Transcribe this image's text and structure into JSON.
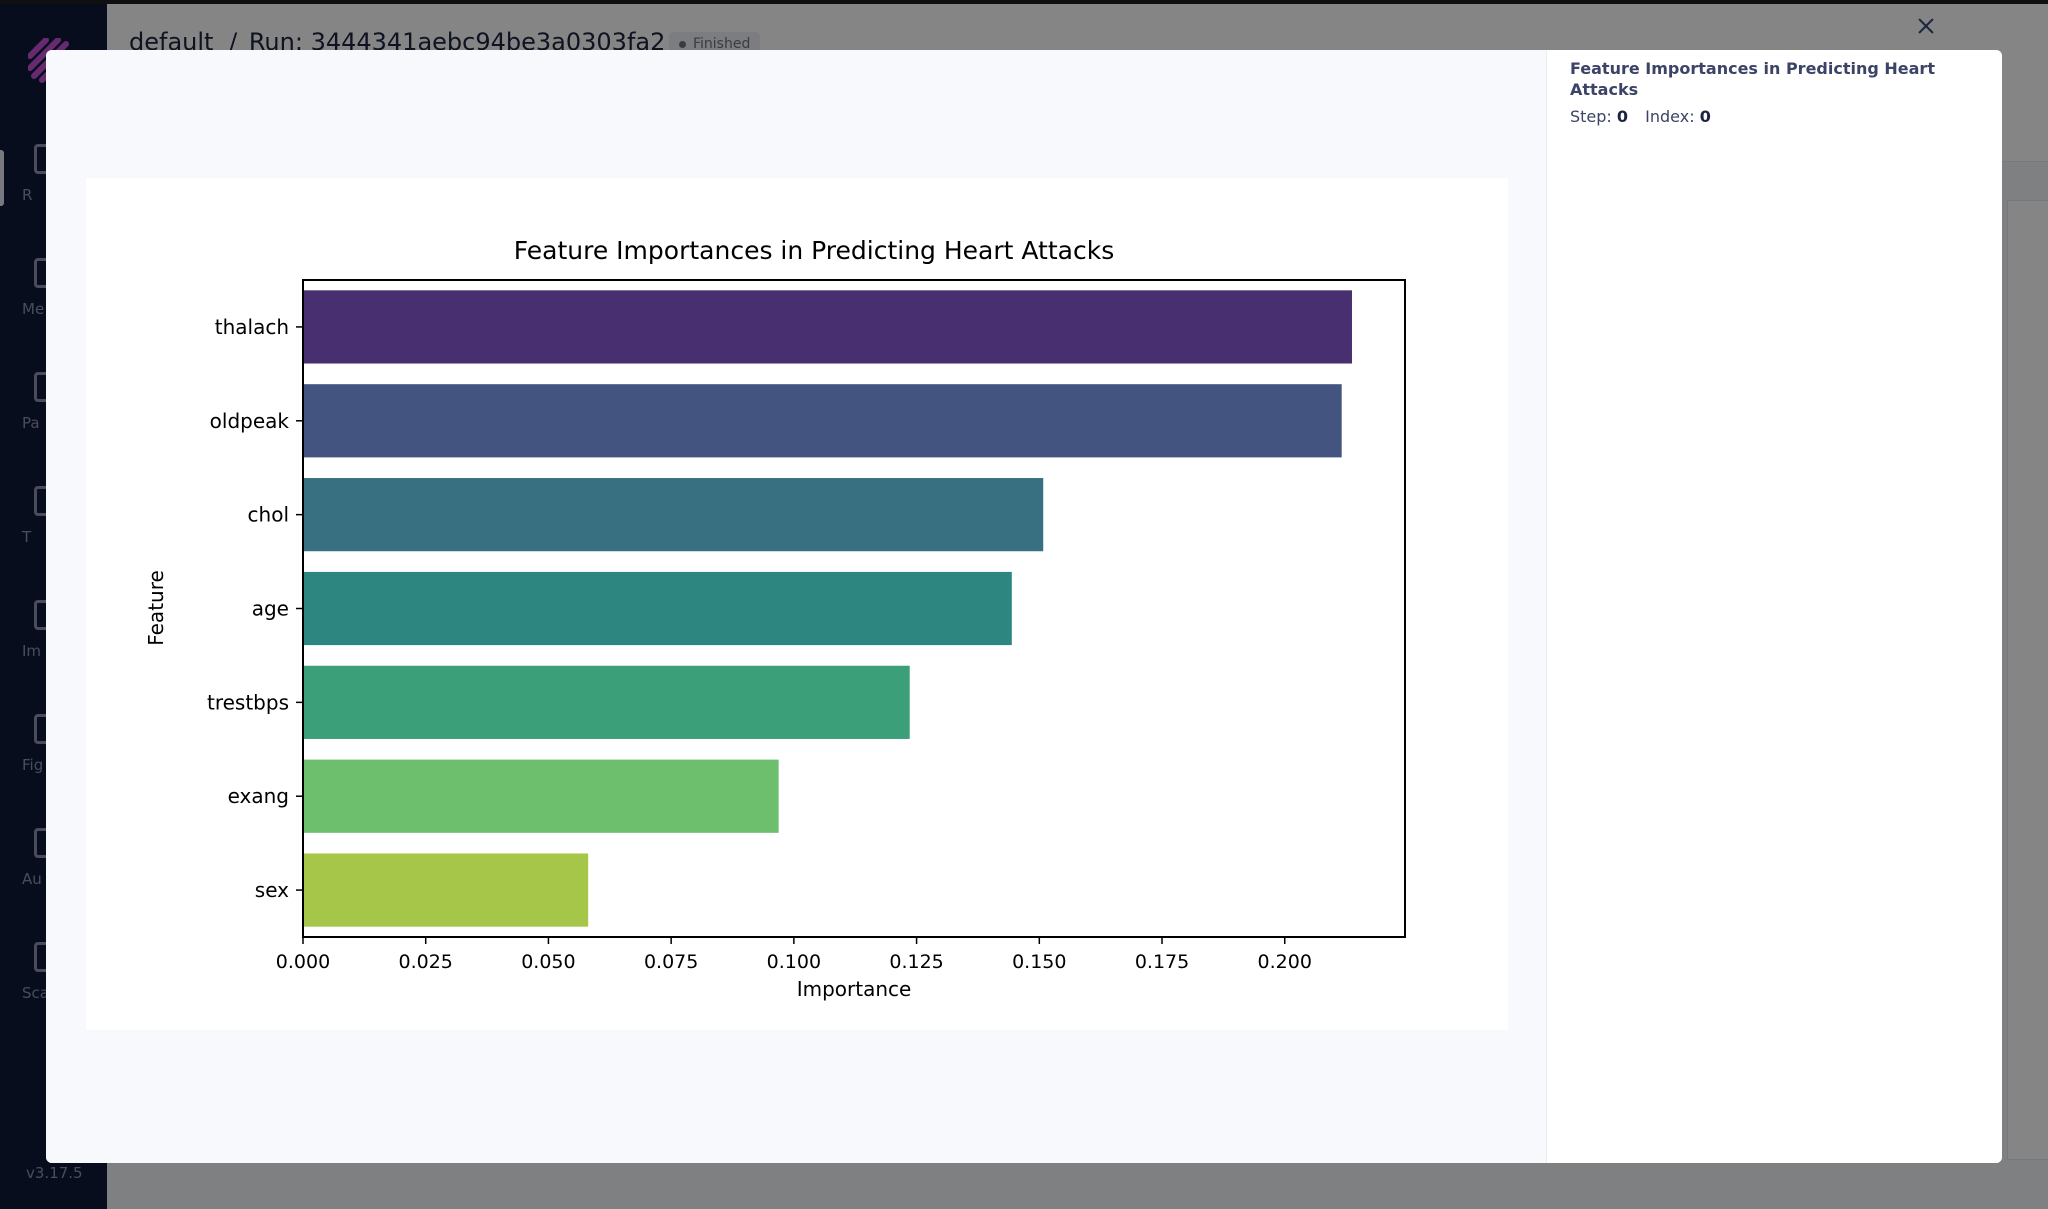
{
  "app": {
    "breadcrumb": {
      "experiment": "default",
      "separator": "/",
      "run_label": "Run: 3444341aebc94be3a0303fa2"
    },
    "run_status": "Finished",
    "version": "v3.17.5",
    "sidebar": {
      "items": [
        {
          "label": "R",
          "icon": "runs-icon"
        },
        {
          "label": "Me",
          "icon": "metrics-icon"
        },
        {
          "label": "Pa",
          "icon": "params-icon"
        },
        {
          "label": "T",
          "icon": "text-icon"
        },
        {
          "label": "Im",
          "icon": "images-icon"
        },
        {
          "label": "Fig",
          "icon": "figures-icon"
        },
        {
          "label": "Au",
          "icon": "audio-icon"
        },
        {
          "label": "Sca",
          "icon": "scatters-icon"
        }
      ]
    }
  },
  "modal": {
    "title": "Feature Importances in Predicting Heart Attacks",
    "step_label": "Step:",
    "step_value": "0",
    "index_label": "Index:",
    "index_value": "0"
  },
  "chart_data": {
    "type": "bar",
    "orientation": "horizontal",
    "title": "Feature Importances in Predicting Heart Attacks",
    "xlabel": "Importance",
    "ylabel": "Feature",
    "categories": [
      "thalach",
      "oldpeak",
      "chol",
      "age",
      "trestbps",
      "exang",
      "sex"
    ],
    "values": [
      0.2137,
      0.2116,
      0.1508,
      0.1444,
      0.1236,
      0.0969,
      0.0581
    ],
    "colors": [
      "#482f70",
      "#445481",
      "#386f81",
      "#2d8780",
      "#3b9f7a",
      "#6dbe6d",
      "#a5c648"
    ],
    "xlim": [
      0,
      0.2245
    ],
    "xticks": [
      0.0,
      0.025,
      0.05,
      0.075,
      0.1,
      0.125,
      0.15,
      0.175,
      0.2
    ],
    "xtick_labels": [
      "0.000",
      "0.025",
      "0.050",
      "0.075",
      "0.100",
      "0.125",
      "0.150",
      "0.175",
      "0.200"
    ],
    "grid": false,
    "legend": "none"
  }
}
